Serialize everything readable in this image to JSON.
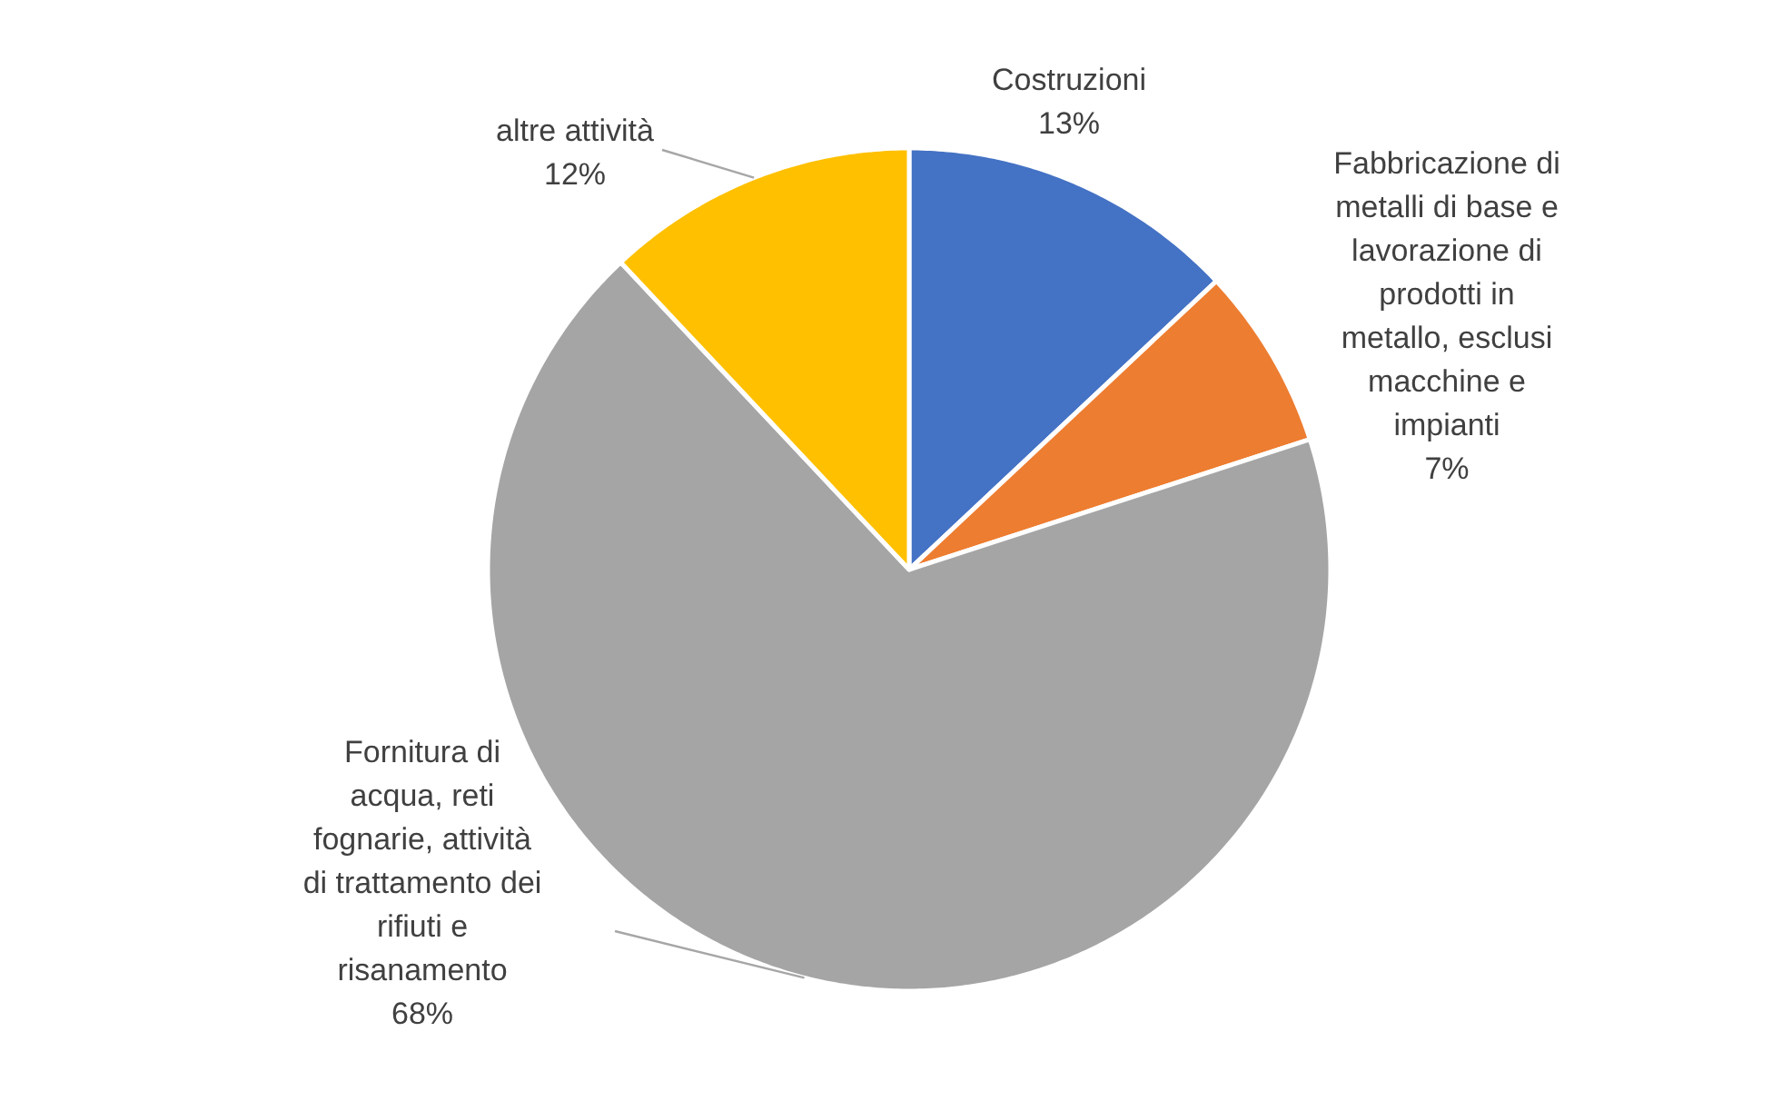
{
  "chart_data": {
    "type": "pie",
    "categories": [
      "Costruzioni",
      "Fabbricazione di metalli di base e lavorazione di prodotti in metallo, esclusi macchine e impianti",
      "Fornitura di acqua, reti fognarie, attività di trattamento dei rifiuti e risanamento",
      "altre attività"
    ],
    "values": [
      13,
      7,
      68,
      12
    ],
    "value_labels": [
      "13%",
      "7%",
      "68%",
      "12%"
    ],
    "colors": [
      "#4472c4",
      "#ed7d31",
      "#a5a5a5",
      "#ffc000"
    ]
  }
}
